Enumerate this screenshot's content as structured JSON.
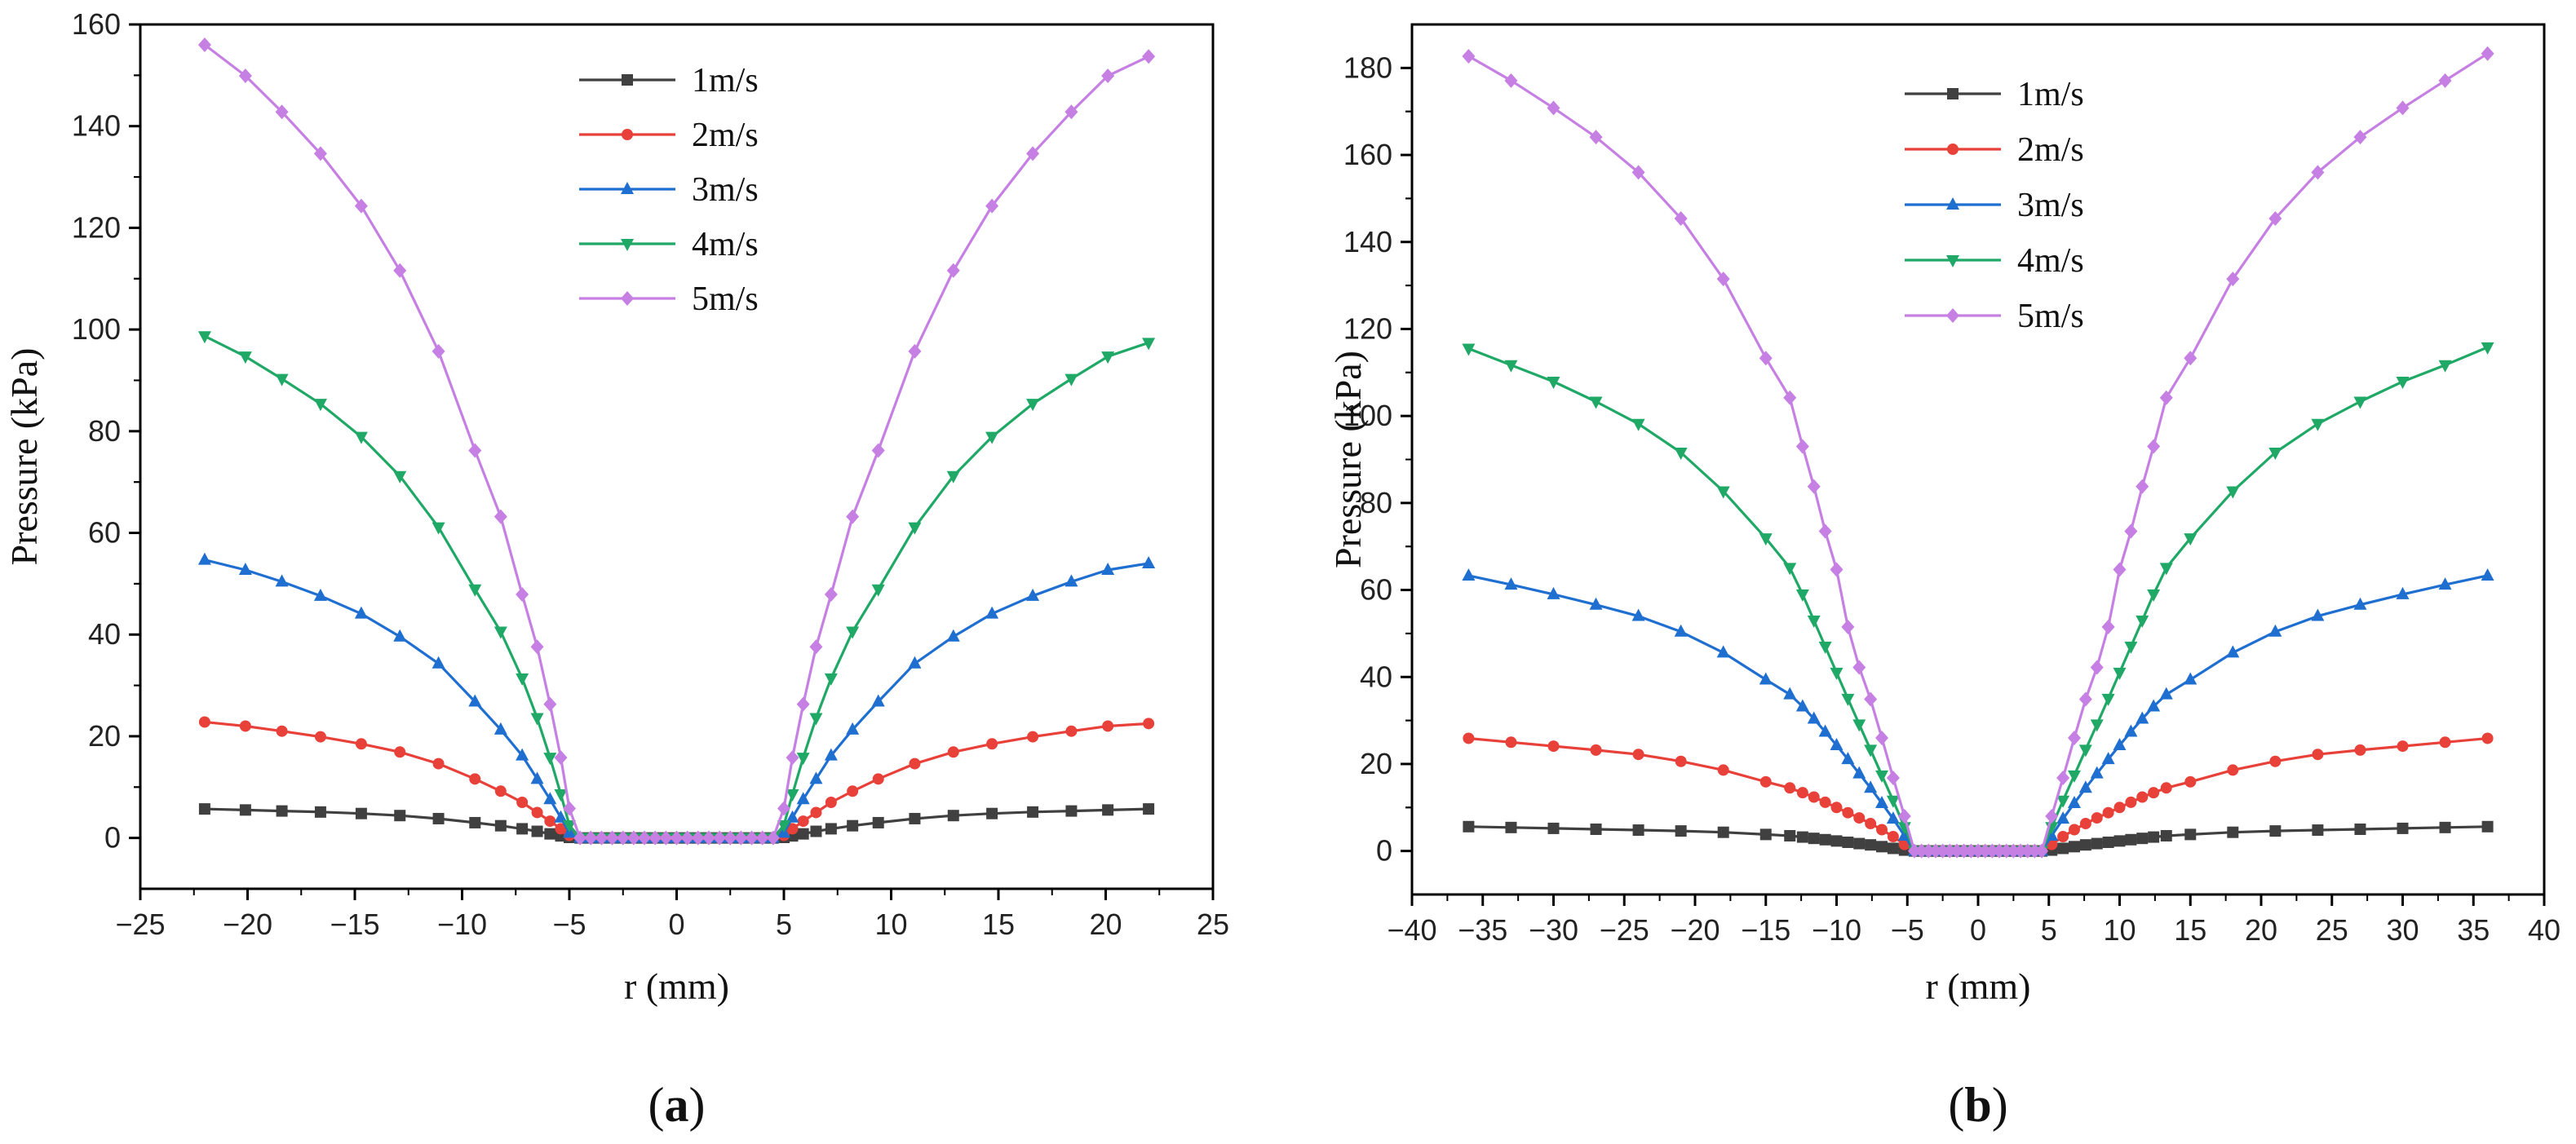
{
  "chart_data": [
    {
      "type": "line",
      "panel_label": "(a)",
      "xlabel": "r (mm)",
      "ylabel": "Pressure (kPa)",
      "xlim": [
        -25,
        25
      ],
      "ylim": [
        -10,
        160
      ],
      "xticks": [
        -25,
        -20,
        -15,
        -10,
        -5,
        0,
        5,
        10,
        15,
        20,
        25
      ],
      "yticks": [
        0,
        20,
        40,
        60,
        80,
        100,
        120,
        140,
        160
      ],
      "x_tick_labels": [
        "−25",
        "−20",
        "−15",
        "−10",
        "−5",
        "0",
        "5",
        "10",
        "15",
        "20",
        "25"
      ],
      "y_tick_labels": [
        "0",
        "20",
        "40",
        "60",
        "80",
        "100",
        "120",
        "140",
        "160"
      ],
      "grid": false,
      "legend_position": "top-center",
      "x": [
        -22,
        -20.1,
        -18.4,
        -16.6,
        -14.7,
        -12.9,
        -11.1,
        -9.4,
        -8.2,
        -7.2,
        -6.5,
        -5.9,
        -5.4,
        -5.0,
        -4.5,
        -4,
        -3.5,
        -3,
        -2.5,
        -2,
        -1.5,
        -1,
        -0.5,
        0,
        0.5,
        1,
        1.5,
        2,
        2.5,
        3,
        3.5,
        4,
        4.5,
        5.0,
        5.4,
        5.9,
        6.5,
        7.2,
        8.2,
        9.4,
        11.1,
        12.9,
        14.7,
        16.6,
        18.4,
        20.1,
        22
      ],
      "series": [
        {
          "name": "1m/s",
          "color": "#404040",
          "marker": "square",
          "values": [
            5.7,
            5.5,
            5.3,
            5.1,
            4.8,
            4.4,
            3.8,
            3.0,
            2.4,
            1.8,
            1.3,
            0.8,
            0.4,
            0.1,
            0,
            0,
            0,
            0,
            0,
            0,
            0,
            0,
            0,
            0,
            0,
            0,
            0,
            0,
            0,
            0,
            0,
            0,
            0,
            0.1,
            0.4,
            0.8,
            1.3,
            1.8,
            2.4,
            3.0,
            3.8,
            4.4,
            4.8,
            5.1,
            5.3,
            5.5,
            5.7
          ]
        },
        {
          "name": "2m/s",
          "color": "#e8413a",
          "marker": "circle",
          "values": [
            22.8,
            22.0,
            21.0,
            19.9,
            18.5,
            16.9,
            14.6,
            11.6,
            9.2,
            7.0,
            5.0,
            3.3,
            1.8,
            0.5,
            0,
            0,
            0,
            0,
            0,
            0,
            0,
            0,
            0,
            0,
            0,
            0,
            0,
            0,
            0,
            0,
            0,
            0,
            0,
            0.5,
            1.8,
            3.3,
            5.0,
            7.0,
            9.2,
            11.6,
            14.6,
            16.9,
            18.5,
            19.9,
            21.0,
            22.0,
            22.5
          ]
        },
        {
          "name": "3m/s",
          "color": "#1f6fd1",
          "marker": "triangle-up",
          "values": [
            54.7,
            52.7,
            50.4,
            47.6,
            44.1,
            39.6,
            34.3,
            26.8,
            21.3,
            16.2,
            11.6,
            7.6,
            4.0,
            1.0,
            0,
            0,
            0,
            0,
            0,
            0,
            0,
            0,
            0,
            0,
            0,
            0,
            0,
            0,
            0,
            0,
            0,
            0,
            0,
            1.0,
            4.0,
            7.6,
            11.6,
            16.2,
            21.3,
            26.8,
            34.3,
            39.6,
            44.1,
            47.6,
            50.4,
            52.7,
            54.0
          ]
        },
        {
          "name": "4m/s",
          "color": "#1fa866",
          "marker": "triangle-down",
          "values": [
            98.7,
            94.7,
            90.3,
            85.4,
            78.9,
            71.2,
            61.1,
            48.9,
            40.6,
            31.4,
            23.6,
            15.8,
            8.6,
            2.5,
            0,
            0,
            0,
            0,
            0,
            0,
            0,
            0,
            0,
            0,
            0,
            0,
            0,
            0,
            0,
            0,
            0,
            0,
            0,
            2.5,
            8.6,
            15.8,
            23.6,
            31.4,
            40.6,
            48.9,
            61.1,
            71.2,
            78.9,
            85.4,
            90.3,
            94.7,
            97.4
          ]
        },
        {
          "name": "5m/s",
          "color": "#c67fe3",
          "marker": "diamond",
          "values": [
            156.0,
            149.9,
            142.8,
            134.6,
            124.3,
            111.6,
            95.7,
            76.2,
            63.2,
            47.9,
            37.6,
            26.3,
            15.8,
            5.8,
            0,
            0,
            0,
            0,
            0,
            0,
            0,
            0,
            0,
            0,
            0,
            0,
            0,
            0,
            0,
            0,
            0,
            0,
            0,
            5.8,
            15.8,
            26.3,
            37.6,
            47.9,
            63.2,
            76.2,
            95.7,
            111.6,
            124.3,
            134.6,
            142.8,
            149.9,
            153.7
          ]
        }
      ]
    },
    {
      "type": "line",
      "panel_label": "(b)",
      "xlabel": "r (mm)",
      "ylabel": "Pressure (kPa)",
      "xlim": [
        -40,
        40
      ],
      "ylim": [
        -10,
        190
      ],
      "xticks": [
        -40,
        -35,
        -30,
        -25,
        -20,
        -15,
        -10,
        -5,
        0,
        5,
        10,
        15,
        20,
        25,
        30,
        35,
        40
      ],
      "yticks": [
        0,
        20,
        40,
        60,
        80,
        100,
        120,
        140,
        160,
        180
      ],
      "x_tick_labels": [
        "−40",
        "−35",
        "−30",
        "−25",
        "−20",
        "−15",
        "−10",
        "−5",
        "0",
        "5",
        "10",
        "15",
        "20",
        "25",
        "30",
        "35",
        "40"
      ],
      "y_tick_labels": [
        "0",
        "20",
        "40",
        "60",
        "80",
        "100",
        "120",
        "140",
        "160",
        "180"
      ],
      "grid": false,
      "legend_position": "top-left",
      "x": [
        -36,
        -33,
        -30,
        -27,
        -24,
        -21,
        -18,
        -15,
        -13.3,
        -12.4,
        -11.6,
        -10.8,
        -10.0,
        -9.2,
        -8.4,
        -7.6,
        -6.8,
        -6.0,
        -5.2,
        -4.5,
        -4,
        -3.5,
        -3,
        -2.5,
        -2,
        -1.5,
        -1,
        -0.5,
        0,
        0.5,
        1,
        1.5,
        2,
        2.5,
        3,
        3.5,
        4,
        4.5,
        5.2,
        6.0,
        6.8,
        7.6,
        8.4,
        9.2,
        10.0,
        10.8,
        11.6,
        12.4,
        13.3,
        15,
        18,
        21,
        24,
        27,
        30,
        33,
        36
      ],
      "series": [
        {
          "name": "1m/s",
          "color": "#404040",
          "marker": "square",
          "values": [
            5.6,
            5.4,
            5.2,
            5.0,
            4.8,
            4.6,
            4.3,
            3.8,
            3.5,
            3.2,
            2.9,
            2.6,
            2.3,
            2.0,
            1.7,
            1.4,
            1.0,
            0.6,
            0.2,
            0,
            0,
            0,
            0,
            0,
            0,
            0,
            0,
            0,
            0,
            0,
            0,
            0,
            0,
            0,
            0,
            0,
            0,
            0,
            0.2,
            0.6,
            1.0,
            1.4,
            1.7,
            2.0,
            2.3,
            2.6,
            2.9,
            3.2,
            3.5,
            3.8,
            4.3,
            4.6,
            4.8,
            5.0,
            5.2,
            5.4,
            5.6
          ]
        },
        {
          "name": "2m/s",
          "color": "#e8413a",
          "marker": "circle",
          "values": [
            25.9,
            25.0,
            24.1,
            23.2,
            22.2,
            20.6,
            18.6,
            15.9,
            14.5,
            13.4,
            12.4,
            11.2,
            10.0,
            8.8,
            7.6,
            6.3,
            4.9,
            3.3,
            1.5,
            0,
            0,
            0,
            0,
            0,
            0,
            0,
            0,
            0,
            0,
            0,
            0,
            0,
            0,
            0,
            0,
            0,
            0,
            0,
            1.5,
            3.3,
            4.9,
            6.3,
            7.6,
            8.8,
            10.0,
            11.2,
            12.4,
            13.4,
            14.5,
            15.9,
            18.6,
            20.6,
            22.2,
            23.2,
            24.1,
            25.0,
            25.9
          ]
        },
        {
          "name": "3m/s",
          "color": "#1f6fd1",
          "marker": "triangle-up",
          "values": [
            63.3,
            61.2,
            59.0,
            56.6,
            54.0,
            50.4,
            45.6,
            39.4,
            36.0,
            33.2,
            30.4,
            27.4,
            24.3,
            21.1,
            17.8,
            14.5,
            11.0,
            7.4,
            3.5,
            0,
            0,
            0,
            0,
            0,
            0,
            0,
            0,
            0,
            0,
            0,
            0,
            0,
            0,
            0,
            0,
            0,
            0,
            0,
            3.5,
            7.4,
            11.0,
            14.5,
            17.8,
            21.1,
            24.3,
            27.4,
            30.4,
            33.2,
            36.0,
            39.4,
            45.6,
            50.4,
            54.0,
            56.6,
            59.0,
            61.2,
            63.3
          ]
        },
        {
          "name": "4m/s",
          "color": "#1fa866",
          "marker": "triangle-down",
          "values": [
            115.5,
            111.7,
            107.9,
            103.3,
            98.2,
            91.6,
            82.7,
            71.9,
            65.1,
            59.0,
            53.0,
            47.0,
            41.0,
            35.0,
            29.1,
            23.3,
            17.4,
            11.6,
            5.5,
            0,
            0,
            0,
            0,
            0,
            0,
            0,
            0,
            0,
            0,
            0,
            0,
            0,
            0,
            0,
            0,
            0,
            0,
            0,
            5.5,
            11.6,
            17.4,
            23.3,
            29.1,
            35.0,
            41.0,
            47.0,
            53.0,
            59.0,
            65.1,
            71.9,
            82.7,
            91.6,
            98.2,
            103.3,
            107.9,
            111.7,
            115.8
          ]
        },
        {
          "name": "5m/s",
          "color": "#c67fe3",
          "marker": "diamond",
          "values": [
            182.7,
            177.1,
            170.8,
            164.1,
            156.0,
            145.4,
            131.5,
            113.3,
            104.2,
            93.0,
            83.8,
            73.5,
            64.7,
            51.5,
            42.2,
            34.9,
            26.0,
            16.8,
            8.0,
            0,
            0,
            0,
            0,
            0,
            0,
            0,
            0,
            0,
            0,
            0,
            0,
            0,
            0,
            0,
            0,
            0,
            0,
            0,
            8.0,
            16.8,
            26.0,
            34.9,
            42.2,
            51.5,
            64.7,
            73.5,
            83.8,
            93.0,
            104.2,
            113.3,
            131.5,
            145.4,
            156.0,
            164.1,
            170.8,
            177.1,
            183.3
          ]
        }
      ]
    }
  ]
}
